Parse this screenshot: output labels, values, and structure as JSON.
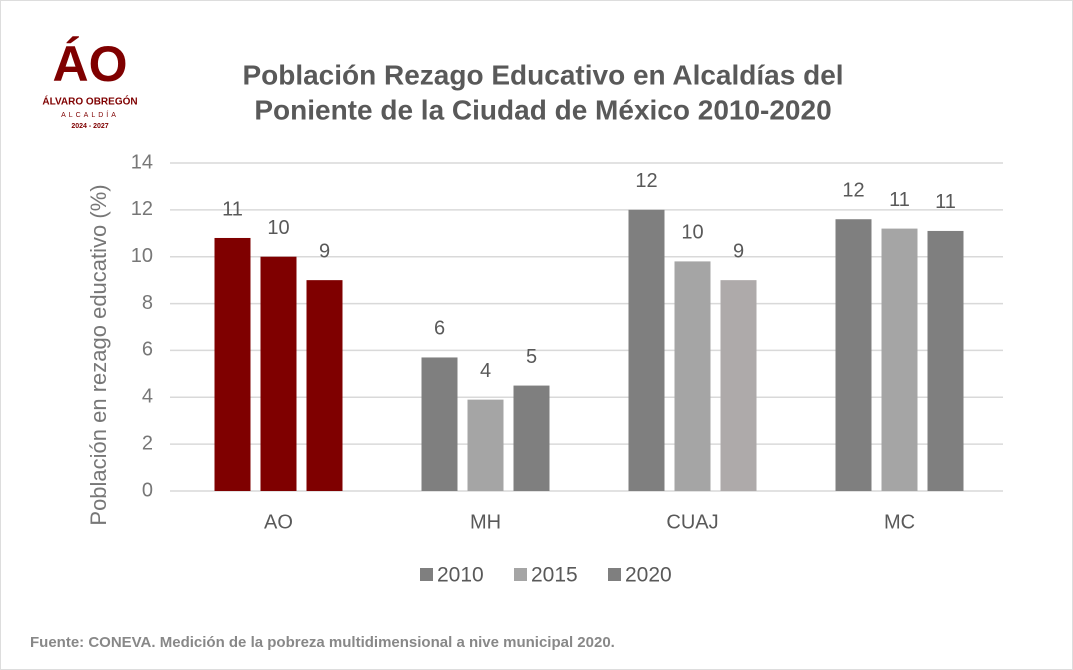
{
  "logo": {
    "mark": "ÁO",
    "name": "ÁLVARO OBREGÓN",
    "sub": "ALCALDÍA",
    "years": "2024 - 2027"
  },
  "chart_data": {
    "type": "bar",
    "title": [
      "Población Rezago Educativo en Alcaldías del",
      "Poniente de la Ciudad de México 2010-2020"
    ],
    "y_label": "Población en rezago educativo (%)",
    "categories": [
      "AO",
      "MH",
      "CUAJ",
      "MC"
    ],
    "series": [
      {
        "name": "2010",
        "color": "#7f7f7f",
        "colors": [
          "#7f0000",
          "#7f7f7f",
          "#7f7f7f",
          "#7f7f7f"
        ],
        "values": [
          10.8,
          5.7,
          12.0,
          11.6
        ],
        "value_labels": [
          "11",
          "6",
          "12",
          "12"
        ]
      },
      {
        "name": "2015",
        "color": "#a5a5a5",
        "colors": [
          "#7f0000",
          "#a5a5a5",
          "#a5a5a5",
          "#a5a5a5"
        ],
        "values": [
          10.0,
          3.9,
          9.8,
          11.2
        ],
        "value_labels": [
          "10",
          "4",
          "10",
          "11"
        ]
      },
      {
        "name": "2020",
        "color": "#7f7f7f",
        "colors": [
          "#7f0000",
          "#7f7f7f",
          "#aeaaaa",
          "#7f7f7f"
        ],
        "values": [
          9.0,
          4.5,
          9.0,
          11.1
        ],
        "value_labels": [
          "9",
          "5",
          "9",
          "11"
        ]
      }
    ],
    "ylim": [
      0,
      14
    ],
    "yticks": [
      0,
      2,
      4,
      6,
      8,
      10,
      12,
      14
    ],
    "grid": true,
    "legend": "bottom"
  },
  "footer": "Fuente: CONEVA. Medición de la pobreza multidimensional a nive municipal 2020."
}
